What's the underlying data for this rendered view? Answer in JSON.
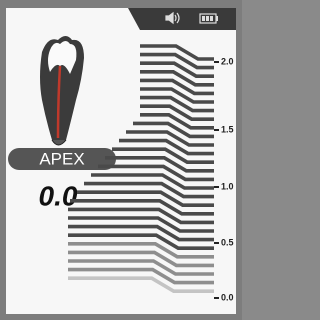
{
  "apex_label": "APEX",
  "reading": "0.0",
  "scale": [
    "2.0",
    "1.5",
    "1.0",
    "0.5",
    "0.0"
  ]
}
